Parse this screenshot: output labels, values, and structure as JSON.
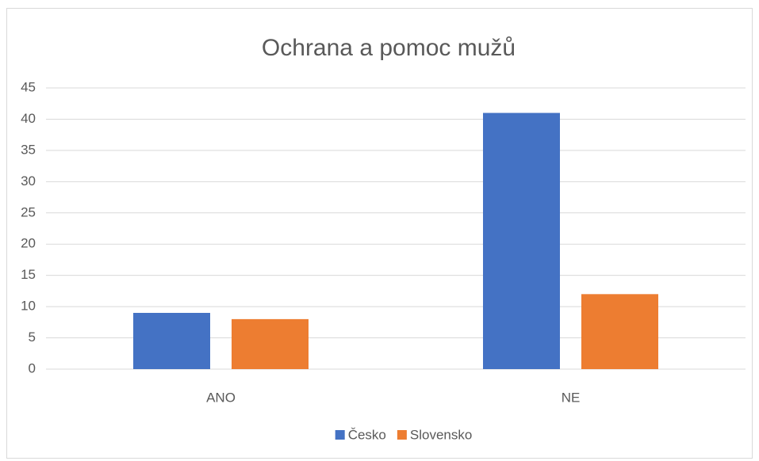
{
  "chart_data": {
    "type": "bar",
    "title": "Ochrana a pomoc mužů",
    "categories": [
      "ANO",
      "NE"
    ],
    "series": [
      {
        "name": "Česko",
        "color": "#4472c4",
        "values": [
          9,
          41
        ]
      },
      {
        "name": "Slovensko",
        "color": "#ed7d31",
        "values": [
          8,
          12
        ]
      }
    ],
    "ylim": [
      0,
      45
    ],
    "yticks": [
      0,
      5,
      10,
      15,
      20,
      25,
      30,
      35,
      40,
      45
    ],
    "grid": true,
    "legend": "bottom"
  }
}
